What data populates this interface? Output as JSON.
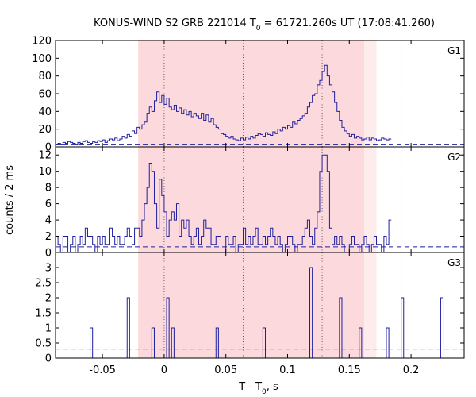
{
  "chart_data": {
    "type": "line",
    "title_prefix": "KONUS-WIND S2 GRB 221014 T",
    "title_sub": "0",
    "title_suffix": " = 61721.260s UT (17:08:41.260)",
    "xlabel_prefix": "T - T",
    "xlabel_sub": "0",
    "xlabel_suffix": ", s",
    "ylabel": "counts / 2 ms",
    "xlim": [
      -0.088,
      0.243
    ],
    "xticks": [
      -0.05,
      0,
      0.05,
      0.1,
      0.15,
      0.2
    ],
    "xtick_labels": [
      "-0.05",
      "0",
      "0.05",
      "0.1",
      "0.15",
      "0.2"
    ],
    "bands": [
      {
        "name": "outer-interval",
        "from": -0.021,
        "to": 0.172,
        "color": "#fdecec"
      },
      {
        "name": "inner-interval",
        "from": -0.021,
        "to": 0.162,
        "color": "#fcd9dc"
      }
    ],
    "vlines": [
      0.0,
      0.064,
      0.128,
      0.192
    ],
    "colors": {
      "series": "#1f1f9e",
      "background_dash": "#1f1f9e",
      "vline": "#333333"
    },
    "panels": [
      {
        "name": "G1",
        "ylim": [
          0,
          120
        ],
        "yticks": [
          0,
          20,
          40,
          60,
          80,
          100,
          120
        ],
        "ytick_labels": [
          "0",
          "20",
          "40",
          "60",
          "80",
          "100",
          "120"
        ],
        "background": 3,
        "x_start": -0.088,
        "bin": 0.002,
        "values": [
          3,
          4,
          3,
          5,
          4,
          6,
          5,
          4,
          3,
          5,
          4,
          6,
          7,
          5,
          4,
          6,
          5,
          7,
          6,
          8,
          5,
          7,
          9,
          8,
          10,
          7,
          9,
          12,
          10,
          14,
          12,
          18,
          15,
          22,
          20,
          25,
          28,
          38,
          45,
          40,
          52,
          62,
          50,
          58,
          48,
          55,
          45,
          42,
          47,
          40,
          44,
          38,
          42,
          36,
          40,
          34,
          38,
          35,
          32,
          38,
          30,
          36,
          28,
          32,
          25,
          22,
          20,
          15,
          14,
          12,
          10,
          12,
          9,
          8,
          7,
          10,
          8,
          11,
          9,
          12,
          10,
          13,
          15,
          14,
          12,
          16,
          14,
          13,
          17,
          15,
          20,
          18,
          22,
          20,
          24,
          22,
          28,
          26,
          30,
          32,
          35,
          38,
          45,
          50,
          58,
          60,
          70,
          75,
          85,
          92,
          80,
          70,
          62,
          50,
          40,
          30,
          22,
          18,
          15,
          12,
          14,
          10,
          12,
          10,
          8,
          9,
          11,
          8,
          10,
          9,
          7,
          8,
          10,
          9,
          8,
          9
        ]
      },
      {
        "name": "G2",
        "ylim": [
          0,
          13
        ],
        "yticks": [
          0,
          2,
          4,
          6,
          8,
          10,
          12
        ],
        "ytick_labels": [
          "0",
          "2",
          "4",
          "6",
          "8",
          "10",
          "12"
        ],
        "background": 0.7,
        "x_start": -0.088,
        "bin": 0.002,
        "values": [
          2,
          1,
          0,
          2,
          2,
          0,
          1,
          2,
          0,
          1,
          2,
          1,
          3,
          2,
          2,
          1,
          0,
          2,
          1,
          2,
          1,
          1,
          3,
          2,
          1,
          2,
          1,
          1,
          2,
          3,
          2,
          1,
          3,
          3,
          2,
          4,
          6,
          8,
          11,
          10,
          6,
          3,
          9,
          7,
          5,
          2,
          4,
          5,
          4,
          6,
          2,
          4,
          3,
          4,
          2,
          1,
          2,
          3,
          1,
          2,
          4,
          3,
          3,
          1,
          1,
          2,
          2,
          0,
          0,
          2,
          1,
          1,
          2,
          0,
          1,
          1,
          3,
          1,
          2,
          1,
          2,
          3,
          1,
          1,
          2,
          1,
          2,
          3,
          2,
          1,
          2,
          1,
          0,
          1,
          2,
          2,
          1,
          0,
          1,
          1,
          2,
          3,
          4,
          2,
          1,
          3,
          5,
          10,
          12,
          12,
          10,
          3,
          1,
          2,
          1,
          2,
          1,
          0,
          0,
          1,
          2,
          1,
          1,
          0,
          1,
          2,
          1,
          0,
          1,
          2,
          1,
          1,
          0,
          2,
          1,
          4
        ]
      },
      {
        "name": "G3",
        "ylim": [
          0,
          3.5
        ],
        "yticks": [
          0,
          0.5,
          1,
          1.5,
          2,
          2.5,
          3
        ],
        "ytick_labels": [
          "0",
          "0.5",
          "1",
          "1.5",
          "2",
          "2.5",
          "3"
        ],
        "background": 0.3,
        "x_start": -0.088,
        "bin": 0.002,
        "values": [
          0,
          0,
          0,
          0,
          0,
          0,
          0,
          0,
          0,
          0,
          0,
          0,
          0,
          0,
          1,
          0,
          0,
          0,
          0,
          0,
          0,
          0,
          0,
          0,
          0,
          0,
          0,
          0,
          0,
          2,
          0,
          0,
          0,
          0,
          0,
          0,
          0,
          0,
          0,
          1,
          0,
          0,
          0,
          0,
          0,
          2,
          0,
          1,
          0,
          0,
          0,
          0,
          0,
          0,
          0,
          0,
          0,
          0,
          0,
          0,
          0,
          0,
          0,
          0,
          0,
          1,
          0,
          0,
          0,
          0,
          0,
          0,
          0,
          0,
          0,
          0,
          0,
          0,
          0,
          0,
          0,
          0,
          0,
          0,
          1,
          0,
          0,
          0,
          0,
          0,
          0,
          0,
          0,
          0,
          0,
          0,
          0,
          0,
          0,
          0,
          0,
          0,
          0,
          3,
          0,
          0,
          0,
          0,
          0,
          0,
          0,
          0,
          0,
          0,
          0,
          2,
          0,
          0,
          0,
          0,
          0,
          0,
          0,
          1,
          0,
          0,
          0,
          0,
          0,
          0,
          0,
          0,
          0,
          0,
          1,
          0,
          0,
          0,
          0,
          0,
          2,
          0,
          0,
          0,
          0,
          0,
          0,
          0,
          0,
          0,
          0,
          0,
          0,
          0,
          0,
          0,
          2,
          0
        ]
      }
    ]
  }
}
